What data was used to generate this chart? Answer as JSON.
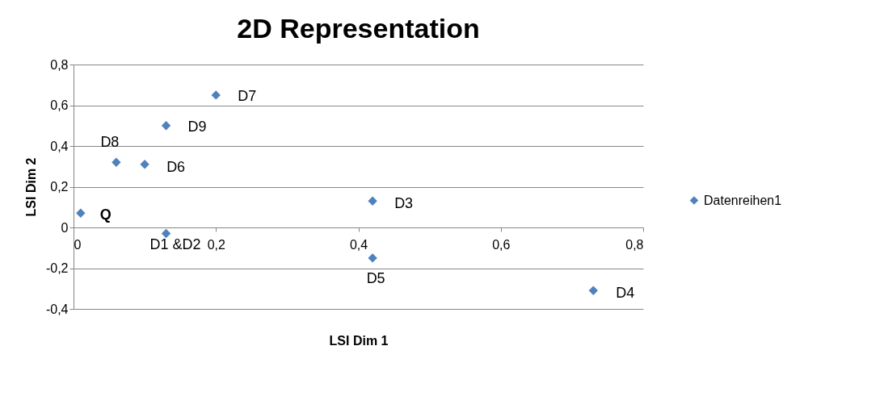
{
  "chart_data": {
    "type": "scatter",
    "title": "2D Representation",
    "xlabel": "LSI Dim 1",
    "ylabel": "LSI Dim 2",
    "series": [
      {
        "name": "Datenreihen1",
        "color": "#4f81bd",
        "x": [
          0.01,
          0.06,
          0.1,
          0.13,
          0.2,
          0.13,
          0.42,
          0.42,
          0.73
        ],
        "values": [
          0.07,
          0.32,
          0.31,
          0.5,
          0.65,
          -0.03,
          0.13,
          -0.15,
          -0.31
        ]
      }
    ],
    "annotations": [
      {
        "text": "Q",
        "x": 0.01,
        "y": 0.07
      },
      {
        "text": "D8",
        "x": 0.06,
        "y": 0.32
      },
      {
        "text": "D6",
        "x": 0.1,
        "y": 0.31
      },
      {
        "text": "D9",
        "x": 0.13,
        "y": 0.5
      },
      {
        "text": "D7",
        "x": 0.2,
        "y": 0.65
      },
      {
        "text": "D1 &D2",
        "x": 0.13,
        "y": -0.03
      },
      {
        "text": "D3",
        "x": 0.42,
        "y": 0.13
      },
      {
        "text": "D5",
        "x": 0.42,
        "y": -0.15
      },
      {
        "text": "D4",
        "x": 0.73,
        "y": -0.31
      }
    ],
    "xlim": [
      0,
      0.8
    ],
    "xticks": [
      0,
      {
        "value": 0.2,
        "label": "0,2"
      },
      {
        "value": 0.4,
        "label": "0,4"
      },
      {
        "value": 0.6,
        "label": "0,6"
      },
      {
        "value": 0.8,
        "label": "0,8"
      }
    ],
    "ylim": [
      -0.4,
      0.8
    ],
    "yticks": [
      {
        "value": -0.4,
        "label": "-0,4"
      },
      {
        "value": -0.2,
        "label": "-0,2"
      },
      0,
      {
        "value": 0.2,
        "label": "0,2"
      },
      {
        "value": 0.4,
        "label": "0,4"
      },
      {
        "value": 0.6,
        "label": "0,6"
      },
      {
        "value": 0.8,
        "label": "0,8"
      }
    ],
    "grid": "y",
    "legend": "right",
    "marker": "diamond"
  }
}
